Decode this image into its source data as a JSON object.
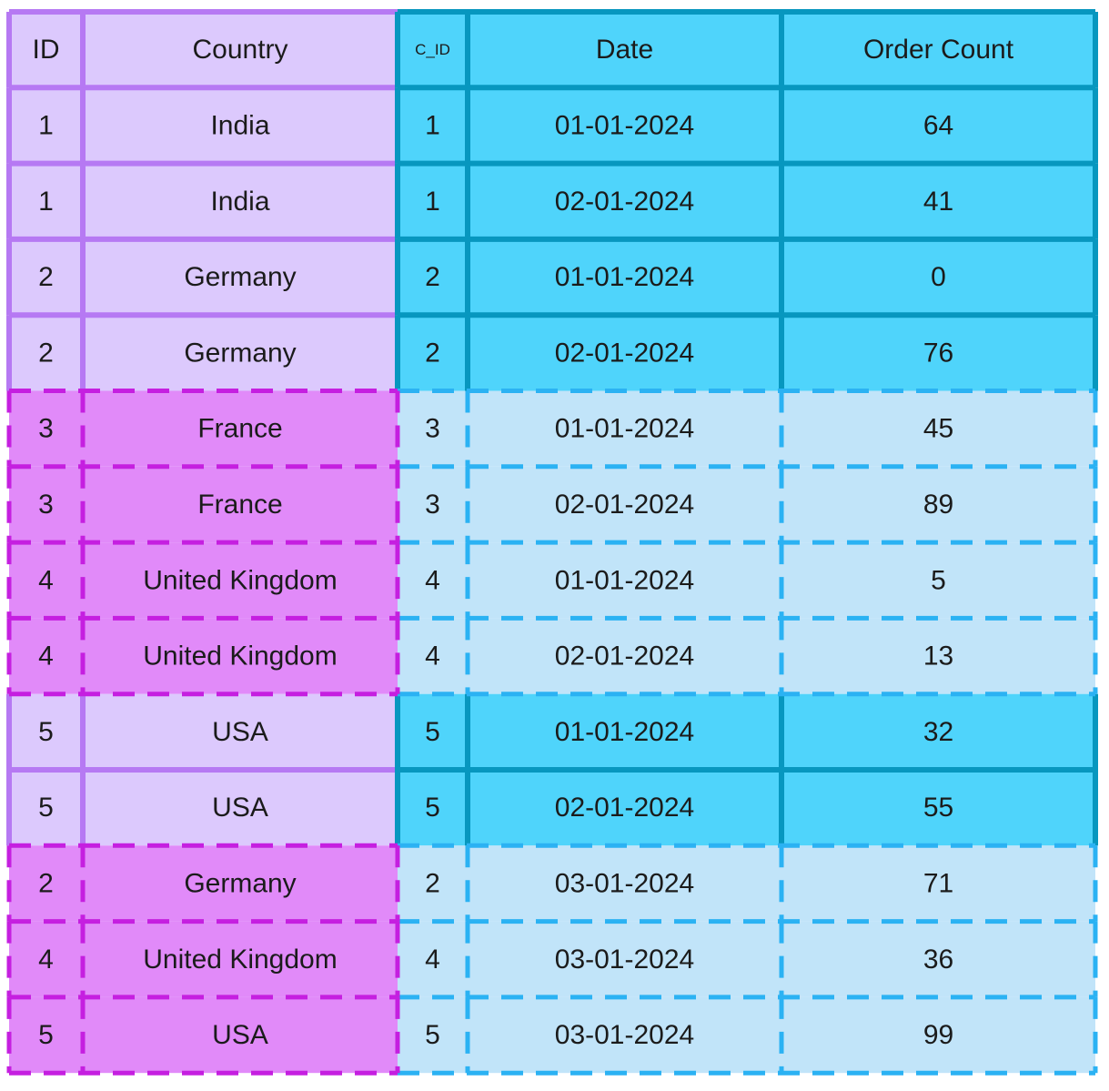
{
  "columns": [
    "ID",
    "Country",
    "C_ID",
    "Date",
    "Order Count"
  ],
  "rows": [
    {
      "id": "1",
      "country": "India",
      "c_id": "1",
      "date": "01-01-2024",
      "order_count": "64",
      "left_style": "solid",
      "right_style": "solid"
    },
    {
      "id": "1",
      "country": "India",
      "c_id": "1",
      "date": "02-01-2024",
      "order_count": "41",
      "left_style": "solid",
      "right_style": "solid"
    },
    {
      "id": "2",
      "country": "Germany",
      "c_id": "2",
      "date": "01-01-2024",
      "order_count": "0",
      "left_style": "solid",
      "right_style": "solid"
    },
    {
      "id": "2",
      "country": "Germany",
      "c_id": "2",
      "date": "02-01-2024",
      "order_count": "76",
      "left_style": "solid",
      "right_style": "solid"
    },
    {
      "id": "3",
      "country": "France",
      "c_id": "3",
      "date": "01-01-2024",
      "order_count": "45",
      "left_style": "dashed",
      "right_style": "dashed"
    },
    {
      "id": "3",
      "country": "France",
      "c_id": "3",
      "date": "02-01-2024",
      "order_count": "89",
      "left_style": "dashed",
      "right_style": "dashed"
    },
    {
      "id": "4",
      "country": "United Kingdom",
      "c_id": "4",
      "date": "01-01-2024",
      "order_count": "5",
      "left_style": "dashed",
      "right_style": "dashed"
    },
    {
      "id": "4",
      "country": "United Kingdom",
      "c_id": "4",
      "date": "02-01-2024",
      "order_count": "13",
      "left_style": "dashed",
      "right_style": "dashed"
    },
    {
      "id": "5",
      "country": "USA",
      "c_id": "5",
      "date": "01-01-2024",
      "order_count": "32",
      "left_style": "solid",
      "right_style": "solid"
    },
    {
      "id": "5",
      "country": "USA",
      "c_id": "5",
      "date": "02-01-2024",
      "order_count": "55",
      "left_style": "solid",
      "right_style": "solid"
    },
    {
      "id": "2",
      "country": "Germany",
      "c_id": "2",
      "date": "03-01-2024",
      "order_count": "71",
      "left_style": "dashed",
      "right_style": "dashed"
    },
    {
      "id": "4",
      "country": "United Kingdom",
      "c_id": "4",
      "date": "03-01-2024",
      "order_count": "36",
      "left_style": "dashed",
      "right_style": "dashed"
    },
    {
      "id": "5",
      "country": "USA",
      "c_id": "5",
      "date": "03-01-2024",
      "order_count": "99",
      "left_style": "dashed",
      "right_style": "dashed"
    }
  ],
  "colors": {
    "left_solid_fill": "#dcc9fd",
    "left_solid_stroke": "#b679f3",
    "left_dashed_fill": "#e18af9",
    "left_dashed_stroke": "#c51fe0",
    "right_solid_fill": "#4fd4fb",
    "right_solid_stroke": "#0797bf",
    "right_dashed_fill": "#c1e4f9",
    "right_dashed_stroke": "#2bb2f3",
    "text": "#1b1b1b"
  }
}
